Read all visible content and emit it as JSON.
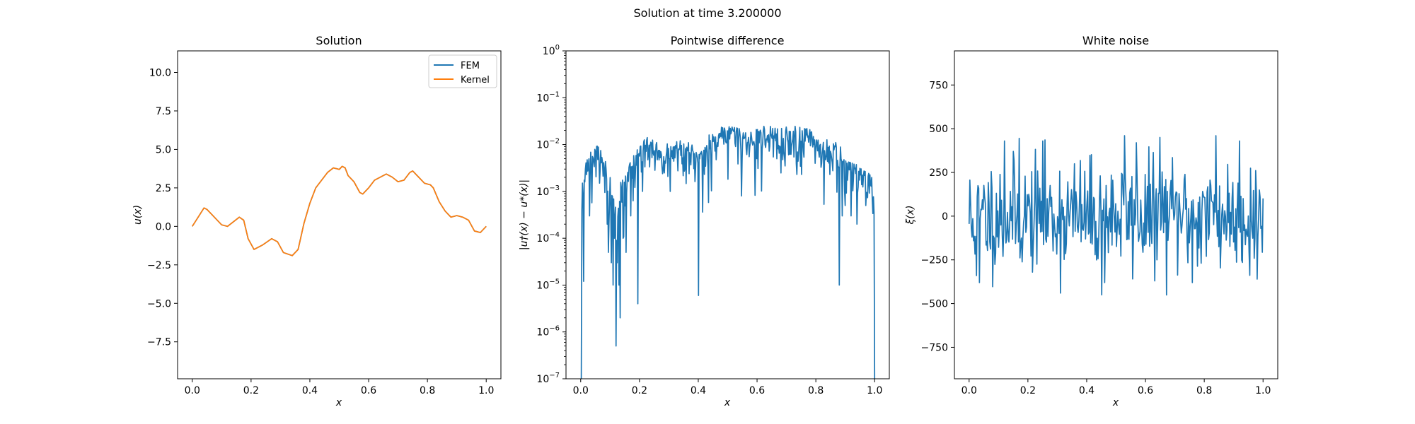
{
  "figure": {
    "suptitle": "Solution at time 3.200000"
  },
  "chart_data": [
    {
      "type": "line",
      "title": "Solution",
      "xlabel": "x",
      "ylabel": "u(x)",
      "xlim": [
        -0.05,
        1.05
      ],
      "ylim": [
        -9.9,
        11.4
      ],
      "xticks": [
        0.0,
        0.2,
        0.4,
        0.6,
        0.8,
        1.0
      ],
      "xtick_labels": [
        "0.0",
        "0.2",
        "0.4",
        "0.6",
        "0.8",
        "1.0"
      ],
      "yticks": [
        -7.5,
        -5.0,
        -2.5,
        0.0,
        2.5,
        5.0,
        7.5,
        10.0
      ],
      "ytick_labels": [
        "−7.5",
        "−5.0",
        "−2.5",
        "0.0",
        "2.5",
        "5.0",
        "7.5",
        "10.0"
      ],
      "legend": "top-right",
      "x": [
        0.0,
        0.02,
        0.04,
        0.05,
        0.07,
        0.1,
        0.12,
        0.14,
        0.16,
        0.175,
        0.19,
        0.21,
        0.24,
        0.27,
        0.29,
        0.31,
        0.34,
        0.36,
        0.38,
        0.4,
        0.42,
        0.44,
        0.46,
        0.48,
        0.5,
        0.51,
        0.52,
        0.53,
        0.55,
        0.57,
        0.58,
        0.6,
        0.62,
        0.64,
        0.66,
        0.68,
        0.7,
        0.72,
        0.74,
        0.75,
        0.77,
        0.79,
        0.81,
        0.82,
        0.84,
        0.86,
        0.88,
        0.9,
        0.92,
        0.94,
        0.96,
        0.98,
        1.0
      ],
      "series": [
        {
          "name": "FEM",
          "color": "#1f77b4",
          "values": [
            0.0,
            0.6,
            1.2,
            1.1,
            0.7,
            0.1,
            0.0,
            0.3,
            0.6,
            0.4,
            -0.8,
            -1.5,
            -1.2,
            -0.8,
            -1.0,
            -1.7,
            -1.9,
            -1.5,
            0.2,
            1.5,
            2.5,
            3.0,
            3.5,
            3.8,
            3.7,
            3.9,
            3.8,
            3.3,
            2.9,
            2.2,
            2.1,
            2.5,
            3.0,
            3.2,
            3.4,
            3.2,
            2.9,
            3.0,
            3.5,
            3.6,
            3.2,
            2.8,
            2.7,
            2.5,
            1.6,
            1.0,
            0.6,
            0.7,
            0.6,
            0.4,
            -0.3,
            -0.4,
            0.0
          ]
        },
        {
          "name": "Kernel",
          "color": "#ff7f0e",
          "values": [
            0.0,
            0.6,
            1.2,
            1.1,
            0.7,
            0.1,
            0.0,
            0.3,
            0.6,
            0.4,
            -0.8,
            -1.5,
            -1.2,
            -0.8,
            -1.0,
            -1.7,
            -1.9,
            -1.5,
            0.2,
            1.5,
            2.5,
            3.0,
            3.5,
            3.8,
            3.7,
            3.9,
            3.8,
            3.3,
            2.9,
            2.2,
            2.1,
            2.5,
            3.0,
            3.2,
            3.4,
            3.2,
            2.9,
            3.0,
            3.5,
            3.6,
            3.2,
            2.8,
            2.7,
            2.5,
            1.6,
            1.0,
            0.6,
            0.7,
            0.6,
            0.4,
            -0.3,
            -0.4,
            0.0
          ]
        }
      ]
    },
    {
      "type": "line",
      "title": "Pointwise difference",
      "xlabel": "x",
      "ylabel": "|u†(x) − u*(x)|",
      "yscale": "log",
      "xlim": [
        -0.05,
        1.05
      ],
      "ylim": [
        1e-07,
        1
      ],
      "xticks": [
        0.0,
        0.2,
        0.4,
        0.6,
        0.8,
        1.0
      ],
      "xtick_labels": [
        "0.0",
        "0.2",
        "0.4",
        "0.6",
        "0.8",
        "1.0"
      ],
      "yticks": [
        1e-07,
        1e-06,
        1e-05,
        0.0001,
        0.001,
        0.01,
        0.1,
        1
      ],
      "ytick_exponents": [
        "−7",
        "−6",
        "−5",
        "−4",
        "−3",
        "−2",
        "−1",
        "0"
      ],
      "series": [
        {
          "name": "",
          "color": "#1f77b4",
          "x_range": [
            0,
            1
          ],
          "n": 500,
          "seed": 7,
          "envelope_x": [
            0.0,
            0.005,
            0.02,
            0.04,
            0.06,
            0.08,
            0.1,
            0.12,
            0.14,
            0.16,
            0.18,
            0.2,
            0.22,
            0.25,
            0.28,
            0.31,
            0.34,
            0.37,
            0.385,
            0.4,
            0.42,
            0.45,
            0.48,
            0.5,
            0.53,
            0.56,
            0.59,
            0.62,
            0.65,
            0.68,
            0.71,
            0.74,
            0.77,
            0.8,
            0.83,
            0.86,
            0.88,
            0.9,
            0.92,
            0.94,
            0.96,
            0.98,
            0.995,
            1.0
          ],
          "envelope_y": [
            1e-07,
            0.0015,
            0.005,
            0.008,
            0.01,
            0.005,
            0.002,
            0.001,
            0.002,
            0.004,
            0.007,
            0.01,
            0.015,
            0.012,
            0.009,
            0.012,
            0.013,
            0.012,
            0.01,
            0.006,
            0.012,
            0.02,
            0.025,
            0.03,
            0.025,
            0.02,
            0.02,
            0.025,
            0.025,
            0.022,
            0.025,
            0.027,
            0.022,
            0.02,
            0.015,
            0.012,
            0.01,
            0.005,
            0.004,
            0.004,
            0.003,
            0.003,
            0.002,
            1e-07
          ],
          "dips_x": [
            0.002,
            0.01,
            0.03,
            0.065,
            0.09,
            0.095,
            0.105,
            0.11,
            0.115,
            0.12,
            0.125,
            0.13,
            0.135,
            0.145,
            0.155,
            0.17,
            0.195,
            0.21,
            0.305,
            0.4,
            0.6,
            0.88,
            0.9,
            0.92,
            0.94,
            0.97
          ],
          "dips_y": [
            1e-07,
            1.2e-05,
            0.0003,
            0.0015,
            0.0002,
            5e-05,
            3e-05,
            1e-05,
            0.0001,
            5e-07,
            3e-05,
            1e-05,
            2e-06,
            0.0001,
            5e-05,
            0.0003,
            4e-06,
            0.001,
            0.001,
            6e-06,
            0.005,
            1e-05,
            0.0005,
            0.0003,
            0.0002,
            0.0005
          ]
        }
      ]
    },
    {
      "type": "line",
      "title": "White noise",
      "xlabel": "x",
      "ylabel": "ξ(x)",
      "xlim": [
        -0.05,
        1.05
      ],
      "ylim": [
        -930,
        945
      ],
      "xticks": [
        0.0,
        0.2,
        0.4,
        0.6,
        0.8,
        1.0
      ],
      "xtick_labels": [
        "0.0",
        "0.2",
        "0.4",
        "0.6",
        "0.8",
        "1.0"
      ],
      "yticks": [
        -750,
        -500,
        -250,
        0,
        250,
        500,
        750
      ],
      "ytick_labels": [
        "−750",
        "−500",
        "−250",
        "0",
        "250",
        "500",
        "750"
      ],
      "series": [
        {
          "name": "",
          "color": "#1f77b4",
          "x_range": [
            0,
            1
          ],
          "n": 400,
          "seed": 11,
          "std": 160,
          "clip": [
            -460,
            460
          ],
          "peaks_x": [
            0.01,
            0.025,
            0.035,
            0.12,
            0.17,
            0.25,
            0.31,
            0.45,
            0.46,
            0.53,
            0.57,
            0.65,
            0.76,
            0.84,
            0.92,
            0.98
          ],
          "peaks_y": [
            -120,
            -340,
            -380,
            430,
            445,
            430,
            -440,
            -450,
            -380,
            460,
            420,
            450,
            -380,
            460,
            430,
            -360
          ]
        }
      ]
    }
  ]
}
